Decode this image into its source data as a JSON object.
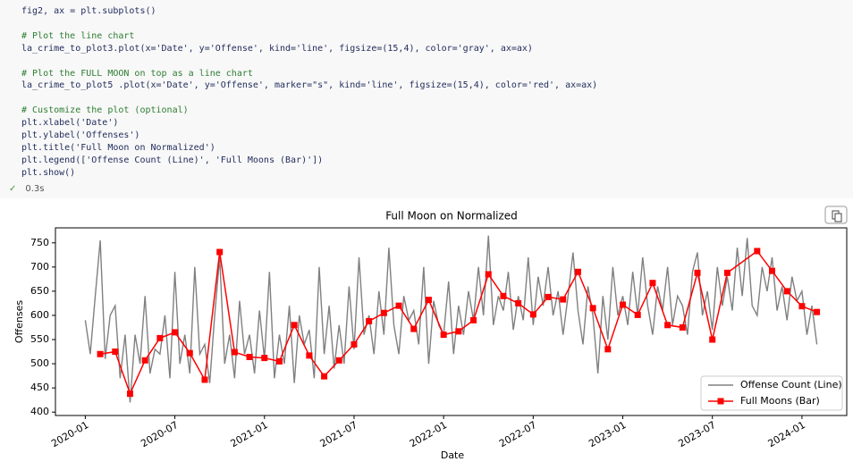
{
  "code_cell": {
    "groups": [
      [
        "fig2, ax = plt.subplots()"
      ],
      [
        "# Plot the line chart",
        "la_crime_to_plot3.plot(x='Date', y='Offense', kind='line', figsize=(15,4), color='gray', ax=ax)"
      ],
      [
        "# Plot the FULL MOON on top as a line chart",
        "la_crime_to_plot5 .plot(x='Date', y='Offense', marker=\"s\", kind='line', figsize=(15,4), color='red', ax=ax)"
      ],
      [
        "# Customize the plot (optional)",
        "plt.xlabel('Date')",
        "plt.ylabel('Offenses')",
        "plt.title('Full Moon on Normalized')",
        "plt.legend(['Offense Count (Line)', 'Full Moons (Bar)'])",
        "plt.show()"
      ]
    ],
    "status": "0.3s"
  },
  "chart_data": {
    "type": "line",
    "title": "Full Moon on Normalized",
    "xlabel": "Date",
    "ylabel": "Offenses",
    "xlim": [
      "2019-11",
      "2024-04"
    ],
    "xticks": [
      "2020-01",
      "2020-07",
      "2021-01",
      "2021-07",
      "2022-01",
      "2022-07",
      "2023-01",
      "2023-07",
      "2024-01"
    ],
    "ylim": [
      393,
      781
    ],
    "yticks": [
      400,
      450,
      500,
      550,
      600,
      650,
      700,
      750
    ],
    "legend": "lower right",
    "series": [
      {
        "name": "Offense Count (Line)",
        "color": "#808080",
        "marker": "none",
        "x": [
          "2020-01",
          "2020-01",
          "2020-01",
          "2020-02",
          "2020-02",
          "2020-02",
          "2020-03",
          "2020-03",
          "2020-03",
          "2020-04",
          "2020-04",
          "2020-04",
          "2020-05",
          "2020-05",
          "2020-05",
          "2020-06",
          "2020-06",
          "2020-06",
          "2020-07",
          "2020-07",
          "2020-07",
          "2020-08",
          "2020-08",
          "2020-08",
          "2020-09",
          "2020-09",
          "2020-09",
          "2020-10",
          "2020-10",
          "2020-10",
          "2020-11",
          "2020-11",
          "2020-11",
          "2020-12",
          "2020-12",
          "2020-12",
          "2021-01",
          "2021-01",
          "2021-01",
          "2021-02",
          "2021-02",
          "2021-02",
          "2021-03",
          "2021-03",
          "2021-03",
          "2021-04",
          "2021-04",
          "2021-04",
          "2021-05",
          "2021-05",
          "2021-05",
          "2021-06",
          "2021-06",
          "2021-06",
          "2021-07",
          "2021-07",
          "2021-07",
          "2021-08",
          "2021-08",
          "2021-08",
          "2021-09",
          "2021-09",
          "2021-09",
          "2021-10",
          "2021-10",
          "2021-10",
          "2021-11",
          "2021-11",
          "2021-11",
          "2021-12",
          "2021-12",
          "2021-12",
          "2022-01",
          "2022-01",
          "2022-01",
          "2022-02",
          "2022-02",
          "2022-02",
          "2022-03",
          "2022-03",
          "2022-03",
          "2022-04",
          "2022-04",
          "2022-04",
          "2022-05",
          "2022-05",
          "2022-05",
          "2022-06",
          "2022-06",
          "2022-06",
          "2022-07",
          "2022-07",
          "2022-07",
          "2022-08",
          "2022-08",
          "2022-08",
          "2022-09",
          "2022-09",
          "2022-09",
          "2022-10",
          "2022-10",
          "2022-10",
          "2022-11",
          "2022-11",
          "2022-11",
          "2022-12",
          "2022-12",
          "2022-12",
          "2023-01",
          "2023-01",
          "2023-01",
          "2023-02",
          "2023-02",
          "2023-02",
          "2023-03",
          "2023-03",
          "2023-03",
          "2023-04",
          "2023-04",
          "2023-04",
          "2023-05",
          "2023-05",
          "2023-05",
          "2023-06",
          "2023-06",
          "2023-06",
          "2023-07",
          "2023-07",
          "2023-07",
          "2023-08",
          "2023-08",
          "2023-08",
          "2023-09",
          "2023-09",
          "2023-09",
          "2023-10",
          "2023-10",
          "2023-10",
          "2023-11",
          "2023-11",
          "2023-11",
          "2023-12",
          "2023-12",
          "2023-12",
          "2024-01",
          "2024-01",
          "2024-01",
          "2024-02"
        ],
        "values": [
          590,
          520,
          640,
          755,
          510,
          600,
          620,
          470,
          560,
          420,
          560,
          500,
          640,
          480,
          530,
          520,
          600,
          470,
          690,
          500,
          560,
          480,
          700,
          520,
          540,
          460,
          600,
          720,
          500,
          560,
          470,
          630,
          520,
          560,
          480,
          610,
          510,
          690,
          470,
          560,
          500,
          620,
          460,
          600,
          540,
          570,
          470,
          700,
          520,
          620,
          490,
          580,
          500,
          660,
          530,
          720,
          560,
          600,
          520,
          650,
          560,
          740,
          580,
          520,
          640,
          590,
          610,
          540,
          700,
          500,
          630,
          580,
          560,
          670,
          520,
          620,
          560,
          650,
          590,
          700,
          600,
          765,
          580,
          640,
          610,
          690,
          570,
          640,
          590,
          720,
          580,
          680,
          620,
          700,
          600,
          650,
          560,
          640,
          730,
          610,
          540,
          660,
          600,
          480,
          640,
          550,
          700,
          600,
          640,
          580,
          690,
          600,
          720,
          620,
          560,
          660,
          610,
          700,
          580,
          640,
          620,
          560,
          690,
          730,
          600,
          650,
          570,
          700,
          620,
          680,
          610,
          740,
          640,
          760,
          620,
          600,
          700,
          650,
          720,
          610,
          660,
          590,
          680,
          630,
          650,
          560,
          620,
          540
        ]
      },
      {
        "name": "Full Moons (Bar)",
        "color": "#ff0000",
        "marker": "square",
        "x": [
          "2020-02",
          "2020-03",
          "2020-04",
          "2020-05",
          "2020-06",
          "2020-07",
          "2020-08",
          "2020-09",
          "2020-10",
          "2020-11",
          "2020-12",
          "2021-01",
          "2021-02",
          "2021-03",
          "2021-04",
          "2021-05",
          "2021-06",
          "2021-07",
          "2021-08",
          "2021-09",
          "2021-10",
          "2021-11",
          "2021-12",
          "2022-01",
          "2022-02",
          "2022-03",
          "2022-04",
          "2022-05",
          "2022-06",
          "2022-07",
          "2022-08",
          "2022-09",
          "2022-10",
          "2022-11",
          "2022-12",
          "2023-01",
          "2023-02",
          "2023-03",
          "2023-04",
          "2023-05",
          "2023-06",
          "2023-07",
          "2023-08",
          "2023-10",
          "2023-11",
          "2023-12",
          "2024-01",
          "2024-02"
        ],
        "values": [
          520,
          525,
          438,
          507,
          553,
          565,
          522,
          467,
          731,
          524,
          514,
          512,
          505,
          580,
          517,
          474,
          507,
          540,
          588,
          605,
          620,
          572,
          632,
          560,
          567,
          590,
          685,
          640,
          625,
          602,
          638,
          633,
          690,
          615,
          530,
          622,
          601,
          667,
          580,
          575,
          688,
          550,
          688,
          733,
          692,
          650,
          619,
          607
        ]
      }
    ]
  }
}
